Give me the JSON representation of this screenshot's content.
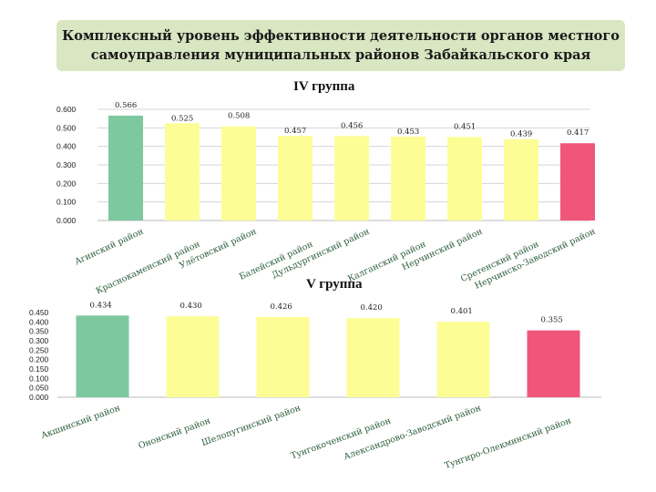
{
  "title": "Комплексный уровень эффективности деятельности органов местного самоуправления муниципальных районов Забайкальского края",
  "chart_data": [
    {
      "type": "bar",
      "title": "IV группа",
      "categories": [
        "Агинский район",
        "Краснокаменский район",
        "Улётовский район",
        "Балейский район",
        "Дульдургинский район",
        "Калганский район",
        "Нерчинский район",
        "Сретенский район",
        "Нерчинско-Заводский район"
      ],
      "values": [
        0.566,
        0.525,
        0.508,
        0.457,
        0.456,
        0.453,
        0.451,
        0.439,
        0.417
      ],
      "value_labels": [
        "0.566",
        "0.525",
        "0.508",
        "0.457",
        "0.456",
        "0.453",
        "0.451",
        "0.439",
        "0.417"
      ],
      "colors": [
        "#7ec8a0",
        "#fdfd96",
        "#fdfd96",
        "#fdfd96",
        "#fdfd96",
        "#fdfd96",
        "#fdfd96",
        "#fdfd96",
        "#f0567a"
      ],
      "yticks": [
        "0.000",
        "0.100",
        "0.200",
        "0.300",
        "0.400",
        "0.500",
        "0.600"
      ],
      "ylim": [
        0,
        0.6
      ],
      "grid": true
    },
    {
      "type": "bar",
      "title": "V группа",
      "categories": [
        "Акшинский район",
        "Ононский район",
        "Шелопугинский район",
        "Тунгокоченский район",
        "Александрово-Заводский район",
        "Тунгиро-Олекминский район"
      ],
      "values": [
        0.434,
        0.43,
        0.426,
        0.42,
        0.401,
        0.355
      ],
      "value_labels": [
        "0.434",
        "0.430",
        "0.426",
        "0.420",
        "0.401",
        "0.355"
      ],
      "colors": [
        "#7ec8a0",
        "#fdfd96",
        "#fdfd96",
        "#fdfd96",
        "#fdfd96",
        "#f0567a"
      ],
      "yticks": [
        "0.000",
        "0.050",
        "0.100",
        "0.150",
        "0.200",
        "0.250",
        "0.300",
        "0.350",
        "0.400",
        "0.450"
      ],
      "ylim": [
        0,
        0.45
      ],
      "grid": false
    }
  ]
}
